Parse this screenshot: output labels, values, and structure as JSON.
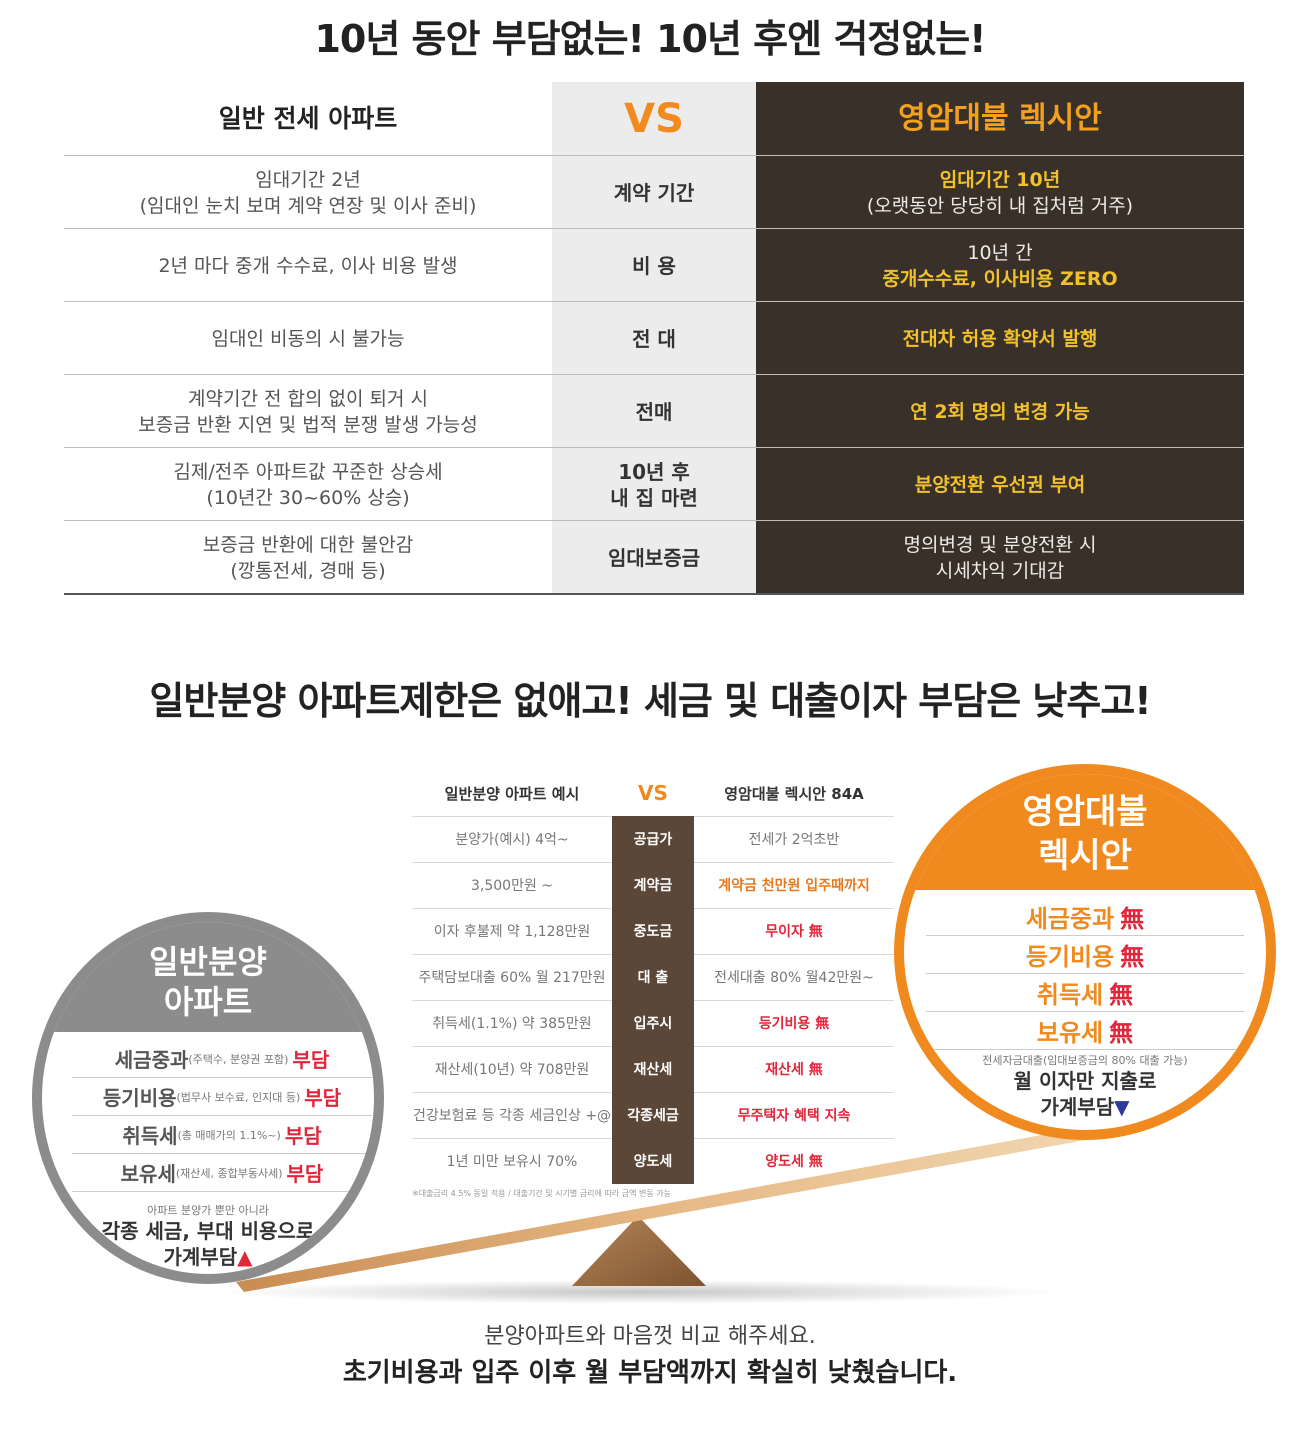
{
  "title1": "10년 동안 부담없는! 10년 후엔 걱정없는!",
  "table": {
    "header": {
      "left": "일반 전세 아파트",
      "mid": "VS",
      "right": "영암대불 렉시안"
    },
    "rows": [
      {
        "left": [
          "임대기간 2년",
          "(임대인 눈치 보며 계약 연장 및 이사 준비)"
        ],
        "mid": [
          "계약 기간"
        ],
        "right": [
          [
            "임대기간 10년",
            "hl"
          ],
          [
            "(오랫동안 당당히 내 집처럼 거주)",
            "wt"
          ]
        ]
      },
      {
        "left": [
          "2년 마다 중개 수수료, 이사 비용 발생"
        ],
        "mid": [
          "비 용"
        ],
        "right": [
          [
            "10년 간",
            "wt"
          ],
          [
            "중개수수료, 이사비용 ZERO",
            "hl"
          ]
        ]
      },
      {
        "left": [
          "임대인 비동의 시 불가능"
        ],
        "mid": [
          "전 대"
        ],
        "right": [
          [
            "전대차 허용 확약서 발행",
            "hl"
          ]
        ]
      },
      {
        "left": [
          "계약기간 전 합의 없이 퇴거 시",
          "보증금 반환 지연 및 법적 분쟁 발생 가능성"
        ],
        "mid": [
          "전매"
        ],
        "right": [
          [
            "연 2회 명의 변경 가능",
            "hl"
          ]
        ]
      },
      {
        "left": [
          "김제/전주 아파트값 꾸준한 상승세",
          "(10년간 30~60% 상승)"
        ],
        "mid": [
          "10년 후",
          "내 집 마련"
        ],
        "right": [
          [
            "분양전환 우선권 부여",
            "hl"
          ]
        ]
      },
      {
        "left": [
          "보증금 반환에 대한 불안감",
          "(깡통전세, 경매 등)"
        ],
        "mid": [
          "임대보증금"
        ],
        "right": [
          [
            "명의변경 및 분양전환 시",
            "wt"
          ],
          [
            "시세차익 기대감",
            "wt"
          ]
        ]
      }
    ]
  },
  "title2": "일반분양 아파트제한은 없애고! 세금 및 대출이자 부담은 낮추고!",
  "mini": {
    "header": {
      "left": "일반분양 아파트 예시",
      "mid": "VS",
      "right": "영암대불 렉시안 84A"
    },
    "rows": [
      {
        "left": "분양가(예시) 4억~",
        "mid": "공급가",
        "right": "전세가 2억초반",
        "rstyle": ""
      },
      {
        "left": "3,500만원 ~",
        "mid": "계약금",
        "right": "계약금 천만원 입주때까지",
        "rstyle": "org"
      },
      {
        "left": "이자 후불제 약 1,128만원",
        "mid": "중도금",
        "right": "무이자 無",
        "rstyle": "red"
      },
      {
        "left": "주택담보대출 60% 월 217만원",
        "mid": "대 출",
        "right": "전세대출 80% 월42만원~",
        "rstyle": ""
      },
      {
        "left": "취득세(1.1%) 약 385만원",
        "mid": "입주시",
        "right": "등기비용 無",
        "rstyle": "red"
      },
      {
        "left": "재산세(10년) 약 708만원",
        "mid": "재산세",
        "right": "재산세 無",
        "rstyle": "red"
      },
      {
        "left": "건강보험료 등 각종 세금인상 +@",
        "mid": "각종세금",
        "right": "무주택자 혜택 지속",
        "rstyle": "red"
      },
      {
        "left": "1년 미만 보유시 70%",
        "mid": "양도세",
        "right": "양도세 無",
        "rstyle": "red"
      }
    ],
    "note": "※대출금리 4.5% 동일 적용 / 대출기간 및 시기별 금리에 따라 금액 변동 가능"
  },
  "circle_left": {
    "title_l1": "일반분양",
    "title_l2": "아파트",
    "items": [
      {
        "main": "세금중과",
        "sub": "(주택수, 분양권 포함)",
        "tag": "부담"
      },
      {
        "main": "등기비용",
        "sub": "(법무사 보수료, 인지대 등)",
        "tag": "부담"
      },
      {
        "main": "취득세",
        "sub": "(총 매매가의 1.1%~)",
        "tag": "부담"
      },
      {
        "main": "보유세",
        "sub": "(재산세, 종합부동사세)",
        "tag": "부담"
      }
    ],
    "foot_small": "아파트 분양가 뿐만 아니라",
    "foot_l1": "각종 세금, 부대 비용으로",
    "foot_l2": "가계부담",
    "foot_arrow": "▲"
  },
  "circle_right": {
    "title_l1": "영암대불",
    "title_l2": "렉시안",
    "items": [
      {
        "main": "세금중과",
        "tag": "無"
      },
      {
        "main": "등기비용",
        "tag": "無"
      },
      {
        "main": "취득세",
        "tag": "無"
      },
      {
        "main": "보유세",
        "tag": "無"
      }
    ],
    "foot_small": "전세자금대출(임대보증금의 80% 대출 가능)",
    "foot_l1": "월 이자만 지출로",
    "foot_l2": "가계부담",
    "foot_arrow": "▼"
  },
  "bottom": {
    "line1": "분양아파트와 마음껏 비교 해주세요.",
    "line2": "초기비용과 입주 이후 월 부담액까지 확실히 낮췄습니다."
  },
  "colors": {
    "dark": "#3a302a",
    "accent": "#f08a1e",
    "highlight": "#f0c12a",
    "red": "#e0263a"
  }
}
